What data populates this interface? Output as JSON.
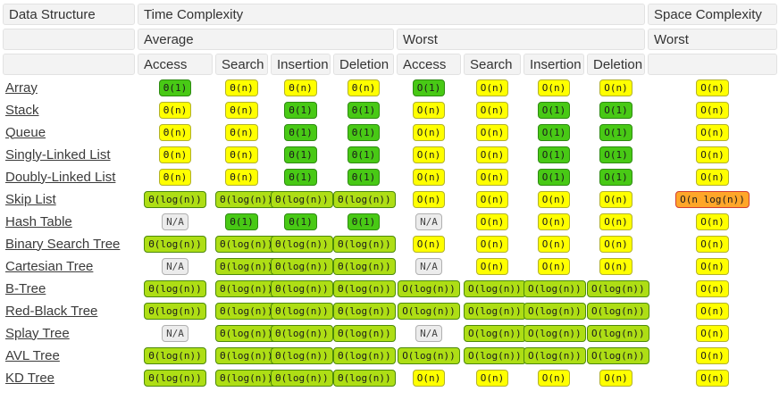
{
  "table": {
    "headers": {
      "data_structure": "Data Structure",
      "time_complexity": "Time Complexity",
      "space_complexity": "Space Complexity",
      "average": "Average",
      "worst": "Worst",
      "space_worst": "Worst",
      "operations": [
        "Access",
        "Search",
        "Insertion",
        "Deletion"
      ]
    },
    "legend_colors": {
      "green": "#48c915",
      "yellowgreen": "#aede15",
      "yellow": "#ffff00",
      "gray": "#ececec",
      "orange": "#ffa629",
      "orange_border": "#d23f31",
      "green_border": "#2e8b12",
      "yellowgreen_border": "#4d8a0b",
      "yellow_border": "#b2b22c",
      "gray_border": "#b0b0b0"
    },
    "rows": [
      {
        "name": "Array",
        "avg": [
          {
            "t": "Θ(1)",
            "c": "green"
          },
          {
            "t": "Θ(n)",
            "c": "yellow"
          },
          {
            "t": "Θ(n)",
            "c": "yellow"
          },
          {
            "t": "Θ(n)",
            "c": "yellow"
          }
        ],
        "worst": [
          {
            "t": "O(1)",
            "c": "green"
          },
          {
            "t": "O(n)",
            "c": "yellow"
          },
          {
            "t": "O(n)",
            "c": "yellow"
          },
          {
            "t": "O(n)",
            "c": "yellow"
          }
        ],
        "space": {
          "t": "O(n)",
          "c": "yellow"
        }
      },
      {
        "name": "Stack",
        "avg": [
          {
            "t": "Θ(n)",
            "c": "yellow"
          },
          {
            "t": "Θ(n)",
            "c": "yellow"
          },
          {
            "t": "Θ(1)",
            "c": "green"
          },
          {
            "t": "Θ(1)",
            "c": "green"
          }
        ],
        "worst": [
          {
            "t": "O(n)",
            "c": "yellow"
          },
          {
            "t": "O(n)",
            "c": "yellow"
          },
          {
            "t": "O(1)",
            "c": "green"
          },
          {
            "t": "O(1)",
            "c": "green"
          }
        ],
        "space": {
          "t": "O(n)",
          "c": "yellow"
        }
      },
      {
        "name": "Queue",
        "avg": [
          {
            "t": "Θ(n)",
            "c": "yellow"
          },
          {
            "t": "Θ(n)",
            "c": "yellow"
          },
          {
            "t": "Θ(1)",
            "c": "green"
          },
          {
            "t": "Θ(1)",
            "c": "green"
          }
        ],
        "worst": [
          {
            "t": "O(n)",
            "c": "yellow"
          },
          {
            "t": "O(n)",
            "c": "yellow"
          },
          {
            "t": "O(1)",
            "c": "green"
          },
          {
            "t": "O(1)",
            "c": "green"
          }
        ],
        "space": {
          "t": "O(n)",
          "c": "yellow"
        }
      },
      {
        "name": "Singly-Linked List",
        "avg": [
          {
            "t": "Θ(n)",
            "c": "yellow"
          },
          {
            "t": "Θ(n)",
            "c": "yellow"
          },
          {
            "t": "Θ(1)",
            "c": "green"
          },
          {
            "t": "Θ(1)",
            "c": "green"
          }
        ],
        "worst": [
          {
            "t": "O(n)",
            "c": "yellow"
          },
          {
            "t": "O(n)",
            "c": "yellow"
          },
          {
            "t": "O(1)",
            "c": "green"
          },
          {
            "t": "O(1)",
            "c": "green"
          }
        ],
        "space": {
          "t": "O(n)",
          "c": "yellow"
        }
      },
      {
        "name": "Doubly-Linked List",
        "avg": [
          {
            "t": "Θ(n)",
            "c": "yellow"
          },
          {
            "t": "Θ(n)",
            "c": "yellow"
          },
          {
            "t": "Θ(1)",
            "c": "green"
          },
          {
            "t": "Θ(1)",
            "c": "green"
          }
        ],
        "worst": [
          {
            "t": "O(n)",
            "c": "yellow"
          },
          {
            "t": "O(n)",
            "c": "yellow"
          },
          {
            "t": "O(1)",
            "c": "green"
          },
          {
            "t": "O(1)",
            "c": "green"
          }
        ],
        "space": {
          "t": "O(n)",
          "c": "yellow"
        }
      },
      {
        "name": "Skip List",
        "avg": [
          {
            "t": "Θ(log(n))",
            "c": "yellowgreen"
          },
          {
            "t": "Θ(log(n))",
            "c": "yellowgreen"
          },
          {
            "t": "Θ(log(n))",
            "c": "yellowgreen"
          },
          {
            "t": "Θ(log(n))",
            "c": "yellowgreen"
          }
        ],
        "worst": [
          {
            "t": "O(n)",
            "c": "yellow"
          },
          {
            "t": "O(n)",
            "c": "yellow"
          },
          {
            "t": "O(n)",
            "c": "yellow"
          },
          {
            "t": "O(n)",
            "c": "yellow"
          }
        ],
        "space": {
          "t": "O(n log(n))",
          "c": "orange"
        }
      },
      {
        "name": "Hash Table",
        "avg": [
          {
            "t": "N/A",
            "c": "gray"
          },
          {
            "t": "Θ(1)",
            "c": "green"
          },
          {
            "t": "Θ(1)",
            "c": "green"
          },
          {
            "t": "Θ(1)",
            "c": "green"
          }
        ],
        "worst": [
          {
            "t": "N/A",
            "c": "gray"
          },
          {
            "t": "O(n)",
            "c": "yellow"
          },
          {
            "t": "O(n)",
            "c": "yellow"
          },
          {
            "t": "O(n)",
            "c": "yellow"
          }
        ],
        "space": {
          "t": "O(n)",
          "c": "yellow"
        }
      },
      {
        "name": "Binary Search Tree",
        "avg": [
          {
            "t": "Θ(log(n))",
            "c": "yellowgreen"
          },
          {
            "t": "Θ(log(n))",
            "c": "yellowgreen"
          },
          {
            "t": "Θ(log(n))",
            "c": "yellowgreen"
          },
          {
            "t": "Θ(log(n))",
            "c": "yellowgreen"
          }
        ],
        "worst": [
          {
            "t": "O(n)",
            "c": "yellow"
          },
          {
            "t": "O(n)",
            "c": "yellow"
          },
          {
            "t": "O(n)",
            "c": "yellow"
          },
          {
            "t": "O(n)",
            "c": "yellow"
          }
        ],
        "space": {
          "t": "O(n)",
          "c": "yellow"
        }
      },
      {
        "name": "Cartesian Tree",
        "avg": [
          {
            "t": "N/A",
            "c": "gray"
          },
          {
            "t": "Θ(log(n))",
            "c": "yellowgreen"
          },
          {
            "t": "Θ(log(n))",
            "c": "yellowgreen"
          },
          {
            "t": "Θ(log(n))",
            "c": "yellowgreen"
          }
        ],
        "worst": [
          {
            "t": "N/A",
            "c": "gray"
          },
          {
            "t": "O(n)",
            "c": "yellow"
          },
          {
            "t": "O(n)",
            "c": "yellow"
          },
          {
            "t": "O(n)",
            "c": "yellow"
          }
        ],
        "space": {
          "t": "O(n)",
          "c": "yellow"
        }
      },
      {
        "name": "B-Tree",
        "avg": [
          {
            "t": "Θ(log(n))",
            "c": "yellowgreen"
          },
          {
            "t": "Θ(log(n))",
            "c": "yellowgreen"
          },
          {
            "t": "Θ(log(n))",
            "c": "yellowgreen"
          },
          {
            "t": "Θ(log(n))",
            "c": "yellowgreen"
          }
        ],
        "worst": [
          {
            "t": "O(log(n))",
            "c": "yellowgreen"
          },
          {
            "t": "O(log(n))",
            "c": "yellowgreen"
          },
          {
            "t": "O(log(n))",
            "c": "yellowgreen"
          },
          {
            "t": "O(log(n))",
            "c": "yellowgreen"
          }
        ],
        "space": {
          "t": "O(n)",
          "c": "yellow"
        }
      },
      {
        "name": "Red-Black Tree",
        "avg": [
          {
            "t": "Θ(log(n))",
            "c": "yellowgreen"
          },
          {
            "t": "Θ(log(n))",
            "c": "yellowgreen"
          },
          {
            "t": "Θ(log(n))",
            "c": "yellowgreen"
          },
          {
            "t": "Θ(log(n))",
            "c": "yellowgreen"
          }
        ],
        "worst": [
          {
            "t": "O(log(n))",
            "c": "yellowgreen"
          },
          {
            "t": "O(log(n))",
            "c": "yellowgreen"
          },
          {
            "t": "O(log(n))",
            "c": "yellowgreen"
          },
          {
            "t": "O(log(n))",
            "c": "yellowgreen"
          }
        ],
        "space": {
          "t": "O(n)",
          "c": "yellow"
        }
      },
      {
        "name": "Splay Tree",
        "avg": [
          {
            "t": "N/A",
            "c": "gray"
          },
          {
            "t": "Θ(log(n))",
            "c": "yellowgreen"
          },
          {
            "t": "Θ(log(n))",
            "c": "yellowgreen"
          },
          {
            "t": "Θ(log(n))",
            "c": "yellowgreen"
          }
        ],
        "worst": [
          {
            "t": "N/A",
            "c": "gray"
          },
          {
            "t": "O(log(n))",
            "c": "yellowgreen"
          },
          {
            "t": "O(log(n))",
            "c": "yellowgreen"
          },
          {
            "t": "O(log(n))",
            "c": "yellowgreen"
          }
        ],
        "space": {
          "t": "O(n)",
          "c": "yellow"
        }
      },
      {
        "name": "AVL Tree",
        "avg": [
          {
            "t": "Θ(log(n))",
            "c": "yellowgreen"
          },
          {
            "t": "Θ(log(n))",
            "c": "yellowgreen"
          },
          {
            "t": "Θ(log(n))",
            "c": "yellowgreen"
          },
          {
            "t": "Θ(log(n))",
            "c": "yellowgreen"
          }
        ],
        "worst": [
          {
            "t": "O(log(n))",
            "c": "yellowgreen"
          },
          {
            "t": "O(log(n))",
            "c": "yellowgreen"
          },
          {
            "t": "O(log(n))",
            "c": "yellowgreen"
          },
          {
            "t": "O(log(n))",
            "c": "yellowgreen"
          }
        ],
        "space": {
          "t": "O(n)",
          "c": "yellow"
        }
      },
      {
        "name": "KD Tree",
        "avg": [
          {
            "t": "Θ(log(n))",
            "c": "yellowgreen"
          },
          {
            "t": "Θ(log(n))",
            "c": "yellowgreen"
          },
          {
            "t": "Θ(log(n))",
            "c": "yellowgreen"
          },
          {
            "t": "Θ(log(n))",
            "c": "yellowgreen"
          }
        ],
        "worst": [
          {
            "t": "O(n)",
            "c": "yellow"
          },
          {
            "t": "O(n)",
            "c": "yellow"
          },
          {
            "t": "O(n)",
            "c": "yellow"
          },
          {
            "t": "O(n)",
            "c": "yellow"
          }
        ],
        "space": {
          "t": "O(n)",
          "c": "yellow"
        }
      }
    ]
  }
}
